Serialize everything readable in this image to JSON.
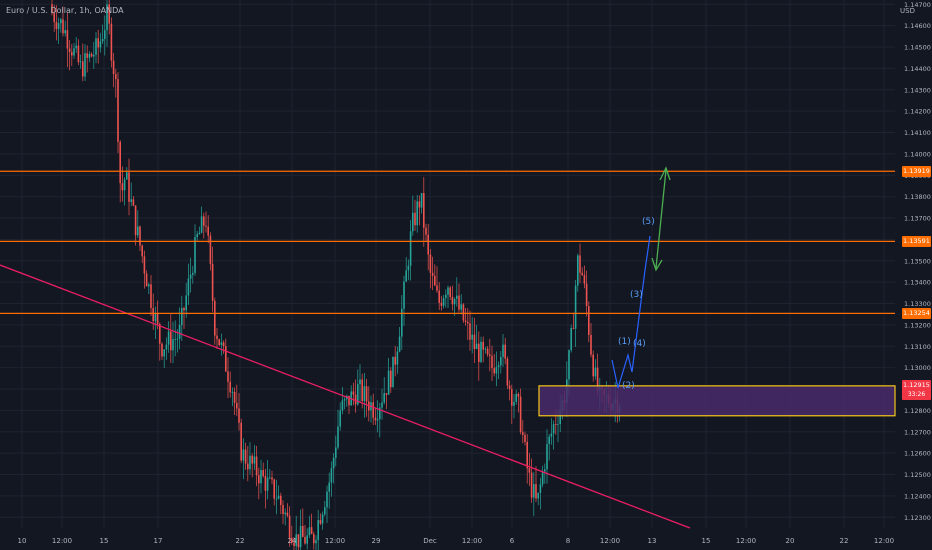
{
  "header": {
    "title": "Euro / U.S. Dollar, 1h, OANDA",
    "currency": "USD"
  },
  "colors": {
    "bg": "#131722",
    "up": "#26a69a",
    "down": "#ef5350",
    "grid": "#1f2331",
    "axis_text": "#b2b5be",
    "resistance": "#ff6d00",
    "trendline": "#e91e63",
    "zone_fill": "#4a2a6a",
    "zone_border": "#f5c518",
    "wave": "#2962ff",
    "wave_label": "#5b9cf6",
    "target_arrow": "#4caf50",
    "current_price": "#f23645"
  },
  "chart_data": {
    "type": "candlestick",
    "y_ticks": [
      "1.14700",
      "1.14600",
      "1.14500",
      "1.14400",
      "1.14300",
      "1.14200",
      "1.14100",
      "1.14000",
      "1.13900",
      "1.13800",
      "1.13700",
      "1.13600",
      "1.13500",
      "1.13400",
      "1.13300",
      "1.13200",
      "1.13100",
      "1.13000",
      "1.12900",
      "1.12800",
      "1.12700",
      "1.12600",
      "1.12500",
      "1.12400",
      "1.12300"
    ],
    "ylim": [
      1.1225,
      1.1472
    ],
    "x_ticks": [
      "10",
      "12:00",
      "15",
      "17",
      "22",
      "24",
      "12:00",
      "29",
      "Dec",
      "12:00",
      "6",
      "8",
      "12:00",
      "13",
      "15",
      "12:00",
      "20",
      "22",
      "12:00"
    ],
    "resistance_levels": [
      1.13919,
      1.13591,
      1.13254
    ],
    "price_labels": [
      "1.13919",
      "1.13591",
      "1.13254",
      "1.12915"
    ],
    "current_price": 1.12915,
    "current_countdown": "33:26",
    "support_zone": [
      1.12775,
      1.12915
    ],
    "trendline": [
      [
        1.1345,
        "10"
      ],
      [
        1.122,
        "13"
      ]
    ],
    "wave_labels": [
      "(1)",
      "(2)",
      "(3)",
      "(4)",
      "(5)"
    ],
    "price_path": [
      [
        0.05,
        1.147
      ],
      [
        0.07,
        1.146
      ],
      [
        0.09,
        1.144
      ],
      [
        0.11,
        1.145
      ],
      [
        0.12,
        1.1465
      ],
      [
        0.13,
        1.143
      ],
      [
        0.135,
        1.138
      ],
      [
        0.14,
        1.139
      ],
      [
        0.15,
        1.137
      ],
      [
        0.16,
        1.135
      ],
      [
        0.17,
        1.133
      ],
      [
        0.18,
        1.131
      ],
      [
        0.2,
        1.1315
      ],
      [
        0.22,
        1.136
      ],
      [
        0.23,
        1.137
      ],
      [
        0.24,
        1.132
      ],
      [
        0.26,
        1.129
      ],
      [
        0.27,
        1.126
      ],
      [
        0.29,
        1.125
      ],
      [
        0.31,
        1.124
      ],
      [
        0.33,
        1.122
      ],
      [
        0.35,
        1.122
      ],
      [
        0.37,
        1.125
      ],
      [
        0.38,
        1.128
      ],
      [
        0.4,
        1.129
      ],
      [
        0.42,
        1.128
      ],
      [
        0.44,
        1.13
      ],
      [
        0.45,
        1.133
      ],
      [
        0.46,
        1.1365
      ],
      [
        0.47,
        1.138
      ],
      [
        0.48,
        1.1345
      ],
      [
        0.49,
        1.133
      ],
      [
        0.5,
        1.134
      ],
      [
        0.52,
        1.132
      ],
      [
        0.53,
        1.131
      ],
      [
        0.55,
        1.13
      ],
      [
        0.56,
        1.131
      ],
      [
        0.57,
        1.129
      ],
      [
        0.58,
        1.128
      ],
      [
        0.59,
        1.125
      ],
      [
        0.6,
        1.1235
      ],
      [
        0.61,
        1.126
      ],
      [
        0.62,
        1.1275
      ],
      [
        0.63,
        1.1285
      ],
      [
        0.635,
        1.13
      ],
      [
        0.64,
        1.132
      ],
      [
        0.645,
        1.135
      ],
      [
        0.65,
        1.1345
      ],
      [
        0.655,
        1.133
      ],
      [
        0.66,
        1.131
      ],
      [
        0.665,
        1.1295
      ],
      [
        0.67,
        1.1285
      ]
    ]
  }
}
